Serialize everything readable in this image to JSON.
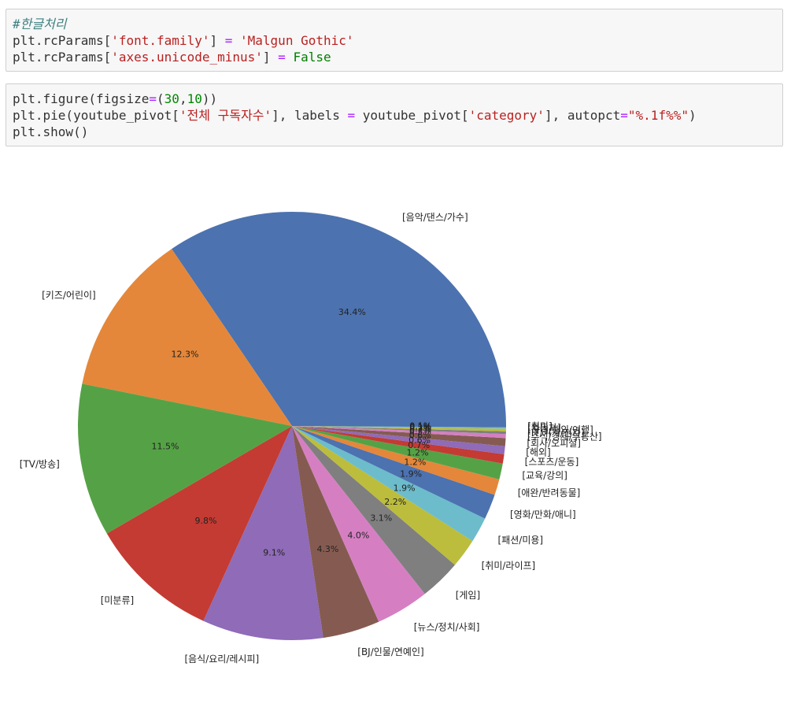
{
  "cells": [
    {
      "lines": [
        [
          {
            "t": "#한글처리",
            "c": "cm"
          }
        ],
        [
          {
            "t": "plt.rcParams[",
            "c": ""
          },
          {
            "t": "'font.family'",
            "c": "st"
          },
          {
            "t": "] ",
            "c": ""
          },
          {
            "t": "=",
            "c": "op"
          },
          {
            "t": " ",
            "c": ""
          },
          {
            "t": "'Malgun Gothic'",
            "c": "st"
          }
        ],
        [
          {
            "t": "plt.rcParams[",
            "c": ""
          },
          {
            "t": "'axes.unicode_minus'",
            "c": "st"
          },
          {
            "t": "] ",
            "c": ""
          },
          {
            "t": "=",
            "c": "op"
          },
          {
            "t": " ",
            "c": ""
          },
          {
            "t": "False",
            "c": "kw"
          }
        ]
      ]
    },
    {
      "lines": [
        [
          {
            "t": "plt.figure(figsize",
            "c": ""
          },
          {
            "t": "=",
            "c": "op"
          },
          {
            "t": "(",
            "c": ""
          },
          {
            "t": "30",
            "c": "num"
          },
          {
            "t": ",",
            "c": ""
          },
          {
            "t": "10",
            "c": "num"
          },
          {
            "t": "))",
            "c": ""
          }
        ],
        [
          {
            "t": "plt.pie(youtube_pivot[",
            "c": ""
          },
          {
            "t": "'전체 구독자수'",
            "c": "st"
          },
          {
            "t": "], labels ",
            "c": ""
          },
          {
            "t": "=",
            "c": "op"
          },
          {
            "t": " youtube_pivot[",
            "c": ""
          },
          {
            "t": "'category'",
            "c": "st"
          },
          {
            "t": "], autopct",
            "c": ""
          },
          {
            "t": "=",
            "c": "op"
          },
          {
            "t": "\"%.1f%%\"",
            "c": "st"
          },
          {
            "t": ")",
            "c": ""
          }
        ],
        [
          {
            "t": "plt.show()",
            "c": ""
          }
        ]
      ]
    }
  ],
  "chart_data": {
    "type": "pie",
    "categories": [
      "[음악/댄스/가수]",
      "[키즈/어린이]",
      "[TV/방송]",
      "[미분류]",
      "[음식/요리/레시피]",
      "[BJ/인물/연예인]",
      "[뉴스/정치/사회]",
      "[게임]",
      "[취미/라이프]",
      "[패션/미용]",
      "[영화/만화/애니]",
      "[애완/반려동물]",
      "[교육/강의]",
      "[스포츠/운동]",
      "[해외]",
      "[회사/오피셜]",
      "[주식/경제/부동산]",
      "[IT/기계/전자]",
      "[국내/해외/여행]",
      "[자동차]",
      "[취미]"
    ],
    "values": [
      34.4,
      12.3,
      11.5,
      9.8,
      9.1,
      4.3,
      4.0,
      3.1,
      2.2,
      1.9,
      1.9,
      1.2,
      1.2,
      0.7,
      0.6,
      0.6,
      0.3,
      0.2,
      0.2,
      0.1,
      0.1
    ],
    "pct_labels": [
      "34.4%",
      "12.3%",
      "11.5%",
      "9.8%",
      "9.1%",
      "4.3%",
      "4.0%",
      "3.1%",
      "2.2%",
      "1.9%",
      "1.9%",
      "1.2%",
      "1.2%",
      "0.7%",
      "0.6%",
      "0.6%",
      "0.3%",
      "0.2%",
      "0.2%",
      "0.1%",
      "0.1%"
    ],
    "colors": [
      "#4c72b0",
      "#e4873a",
      "#55a246",
      "#c33b33",
      "#8f6bb8",
      "#855b51",
      "#d57fc2",
      "#7f7f7f",
      "#bcbd3c",
      "#6cbccc",
      "#4c72b0",
      "#e4873a",
      "#55a246",
      "#c33b33",
      "#8f6bb8",
      "#855b51",
      "#d57fc2",
      "#7f7f7f",
      "#bcbd3c",
      "#6cbccc",
      "#4c72b0"
    ],
    "start_angle": 0,
    "counterclock": true
  }
}
